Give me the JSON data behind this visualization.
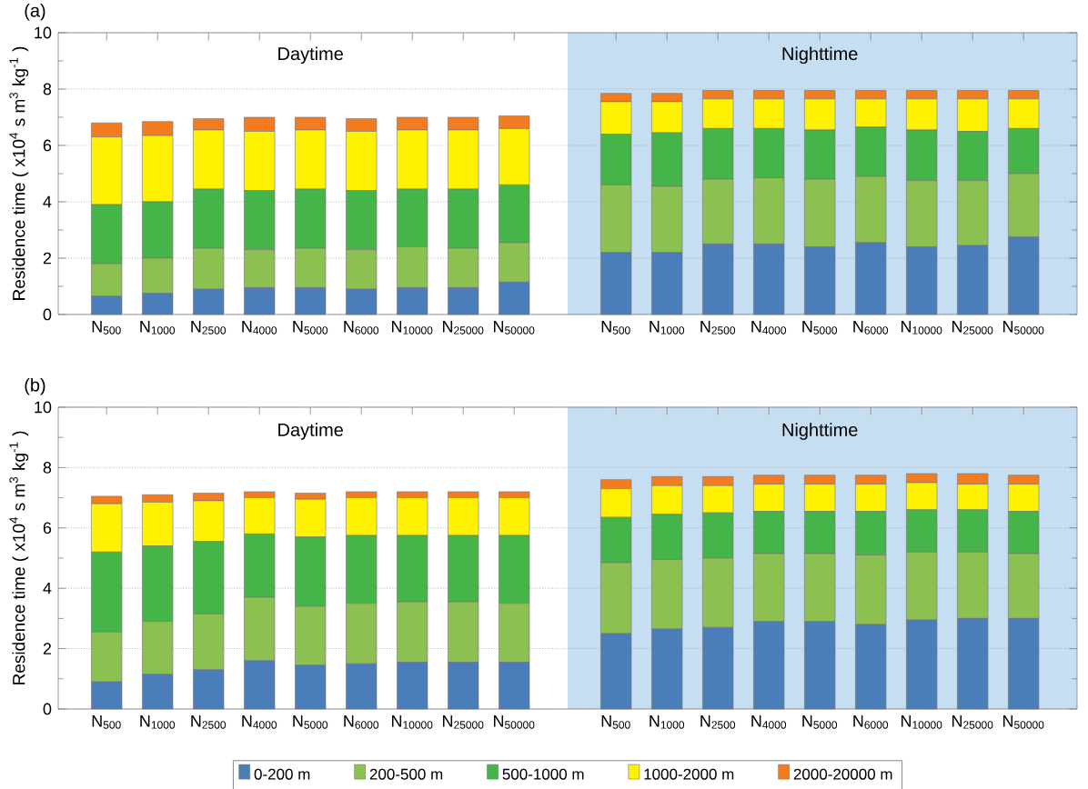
{
  "chart_data": [
    {
      "type": "bar",
      "stacked": true,
      "title": "(a)",
      "ylabel": "Residence time ( x10$^{4}$ s m$^{3}$ kg$^{-1}$ )",
      "categories": [
        "N$_{500}$",
        "N$_{1000}$",
        "N$_{2500}$",
        "N$_{4000}$",
        "N$_{5000}$",
        "N$_{6000}$",
        "N$_{10000}$",
        "N$_{25000}$",
        "N$_{50000}$",
        null,
        "N$_{500}$",
        "N$_{1000}$",
        "N$_{2500}$",
        "N$_{4000}$",
        "N$_{5000}$",
        "N$_{6000}$",
        "N$_{10000}$",
        "N$_{25000}$",
        "N$_{50000}$"
      ],
      "series": [
        {
          "color": "#4a7ebb",
          "values": [
            0.65,
            0.75,
            0.9,
            0.95,
            0.95,
            0.9,
            0.95,
            0.95,
            1.15,
            null,
            2.2,
            2.2,
            2.5,
            2.5,
            2.4,
            2.55,
            2.4,
            2.45,
            2.75
          ]
        },
        {
          "color": "#8cc152",
          "values": [
            1.15,
            1.25,
            1.45,
            1.35,
            1.4,
            1.4,
            1.45,
            1.4,
            1.4,
            null,
            2.4,
            2.35,
            2.3,
            2.35,
            2.4,
            2.35,
            2.35,
            2.3,
            2.25
          ]
        },
        {
          "color": "#46b549",
          "values": [
            2.1,
            2.0,
            2.1,
            2.1,
            2.1,
            2.1,
            2.05,
            2.1,
            2.05,
            null,
            1.8,
            1.9,
            1.8,
            1.75,
            1.75,
            1.75,
            1.8,
            1.75,
            1.6
          ]
        },
        {
          "color": "#fff200",
          "values": [
            2.4,
            2.35,
            2.1,
            2.1,
            2.1,
            2.1,
            2.1,
            2.1,
            2.0,
            null,
            1.15,
            1.1,
            1.05,
            1.05,
            1.1,
            1.0,
            1.1,
            1.15,
            1.05
          ]
        },
        {
          "color": "#f47c20",
          "values": [
            0.5,
            0.5,
            0.4,
            0.5,
            0.45,
            0.45,
            0.45,
            0.45,
            0.45,
            null,
            0.3,
            0.3,
            0.3,
            0.3,
            0.3,
            0.3,
            0.3,
            0.3,
            0.3
          ]
        }
      ],
      "ylim": [
        0,
        10
      ],
      "yticks": [
        0,
        2,
        4,
        6,
        8,
        10
      ],
      "grid": "y",
      "annotations": [
        "Daytime",
        "Nighttime"
      ]
    },
    {
      "type": "bar",
      "stacked": true,
      "title": "(b)",
      "ylabel": "Residence time ( x10$^{4}$ s m$^{3}$ kg$^{-1}$ )",
      "categories": [
        "N$_{500}$",
        "N$_{1000}$",
        "N$_{2500}$",
        "N$_{4000}$",
        "N$_{5000}$",
        "N$_{6000}$",
        "N$_{10000}$",
        "N$_{25000}$",
        "N$_{50000}$",
        null,
        "N$_{500}$",
        "N$_{1000}$",
        "N$_{2500}$",
        "N$_{4000}$",
        "N$_{5000}$",
        "N$_{6000}$",
        "N$_{10000}$",
        "N$_{25000}$",
        "N$_{50000}$"
      ],
      "series": [
        {
          "name": "0-200 m",
          "color": "#4a7ebb",
          "values": [
            0.9,
            1.15,
            1.3,
            1.6,
            1.45,
            1.5,
            1.55,
            1.55,
            1.55,
            null,
            2.5,
            2.65,
            2.7,
            2.9,
            2.9,
            2.8,
            2.95,
            3.0,
            3.0
          ]
        },
        {
          "name": "200-500 m",
          "color": "#8cc152",
          "values": [
            1.65,
            1.75,
            1.85,
            2.1,
            1.95,
            2.0,
            2.0,
            2.0,
            1.95,
            null,
            2.35,
            2.3,
            2.3,
            2.25,
            2.25,
            2.3,
            2.25,
            2.2,
            2.15
          ]
        },
        {
          "name": "500-1000 m",
          "color": "#46b549",
          "values": [
            2.65,
            2.5,
            2.4,
            2.1,
            2.3,
            2.25,
            2.2,
            2.2,
            2.25,
            null,
            1.5,
            1.5,
            1.5,
            1.4,
            1.4,
            1.45,
            1.4,
            1.4,
            1.4
          ]
        },
        {
          "name": "1000-2000 m",
          "color": "#fff200",
          "values": [
            1.6,
            1.45,
            1.35,
            1.2,
            1.25,
            1.25,
            1.25,
            1.25,
            1.25,
            null,
            0.95,
            0.95,
            0.9,
            0.9,
            0.9,
            0.9,
            0.9,
            0.85,
            0.9
          ]
        },
        {
          "name": "2000-20000 m",
          "color": "#f47c20",
          "values": [
            0.25,
            0.25,
            0.25,
            0.2,
            0.2,
            0.2,
            0.2,
            0.2,
            0.2,
            null,
            0.3,
            0.3,
            0.3,
            0.3,
            0.3,
            0.3,
            0.3,
            0.35,
            0.3
          ]
        }
      ],
      "ylim": [
        0,
        10
      ],
      "yticks": [
        0,
        2,
        4,
        6,
        8,
        10
      ],
      "grid": "y",
      "legend": "bottom",
      "annotations": [
        "Daytime",
        "Nighttime"
      ]
    }
  ]
}
